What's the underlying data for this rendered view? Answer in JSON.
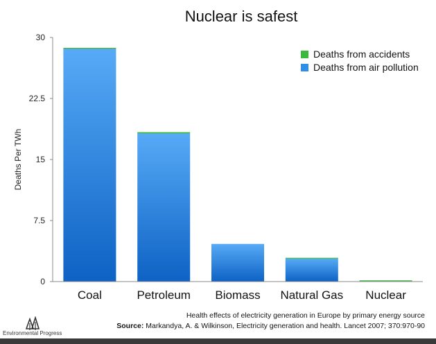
{
  "chart_data": {
    "type": "bar",
    "stacked": true,
    "title": "Nuclear is safest",
    "ylabel": "Deaths Per TWh",
    "xlabel": "",
    "categories": [
      "Coal",
      "Petroleum",
      "Biomass",
      "Natural Gas",
      "Nuclear"
    ],
    "series": [
      {
        "name": "Deaths from air pollution",
        "values": [
          28.6,
          18.2,
          4.63,
          2.82,
          0.05
        ],
        "color": "#2f8fe6"
      },
      {
        "name": "Deaths from accidents",
        "values": [
          0.12,
          0.16,
          0.0,
          0.02,
          0.02
        ],
        "color": "#3cb83c"
      }
    ],
    "ylim": [
      0,
      30
    ],
    "yticks": [
      "0",
      "7.5",
      "15",
      "22.5",
      "30"
    ],
    "ytick_values": [
      0,
      7.5,
      15,
      22.5,
      30
    ],
    "legend_position": "top-right",
    "legend": [
      "Deaths from accidents",
      "Deaths from air pollution"
    ],
    "grid": false
  },
  "caption": {
    "line1": "Health effects of electricity generation in Europe by primary energy source",
    "source_label": "Source:",
    "source_text": "Markandya, A. & Wilkinson, Electricity generation and health. Lancet 2007; 370:970-90"
  },
  "logo": {
    "text": "Environmental Progress",
    "icon": "trees-icon"
  }
}
